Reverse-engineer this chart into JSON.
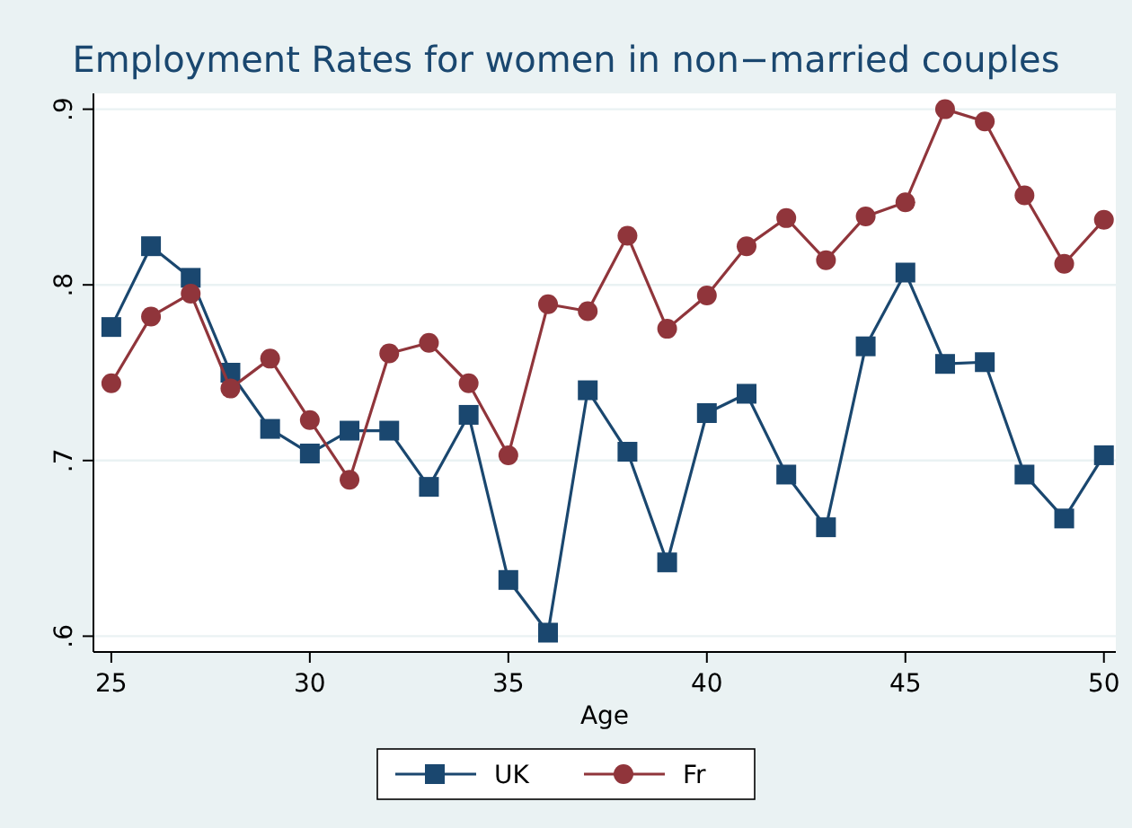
{
  "chart_data": {
    "type": "line",
    "title": "Employment Rates for women in non−married couples",
    "xlabel": "Age",
    "x": [
      25,
      26,
      27,
      28,
      29,
      30,
      31,
      32,
      33,
      34,
      35,
      36,
      37,
      38,
      39,
      40,
      41,
      42,
      43,
      44,
      45,
      46,
      47,
      48,
      49,
      50
    ],
    "series": [
      {
        "name": "UK",
        "color": "#1a476f",
        "marker": "square",
        "values": [
          0.776,
          0.822,
          0.804,
          0.75,
          0.718,
          0.704,
          0.717,
          0.717,
          0.685,
          0.726,
          0.632,
          0.602,
          0.74,
          0.705,
          0.642,
          0.727,
          0.738,
          0.692,
          0.662,
          0.765,
          0.807,
          0.755,
          0.756,
          0.692,
          0.667,
          0.703
        ]
      },
      {
        "name": "Fr",
        "color": "#90353b",
        "marker": "circle",
        "values": [
          0.744,
          0.782,
          0.795,
          0.741,
          0.758,
          0.723,
          0.689,
          0.761,
          0.767,
          0.744,
          0.703,
          0.789,
          0.785,
          0.828,
          0.775,
          0.794,
          0.822,
          0.838,
          0.814,
          0.839,
          0.847,
          0.9,
          0.893,
          0.851,
          0.812,
          0.837
        ]
      }
    ],
    "xlim": [
      24.55,
      50.3
    ],
    "xticks": [
      25,
      30,
      35,
      40,
      45,
      50
    ],
    "ylim": [
      0.591,
      0.909
    ],
    "yticks": [
      {
        "value": 0.6,
        "label": ".6"
      },
      {
        "value": 0.7,
        "label": ".7"
      },
      {
        "value": 0.8,
        "label": ".8"
      },
      {
        "value": 0.9,
        "label": ".9"
      }
    ],
    "grid": "y",
    "legend": "bottom",
    "line_style": "solid"
  }
}
